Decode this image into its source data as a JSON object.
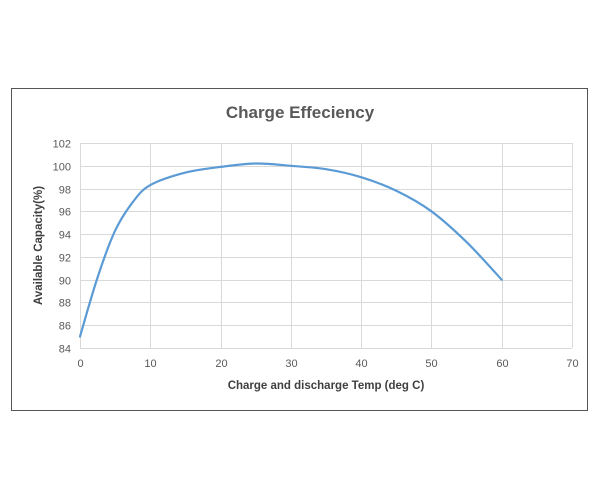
{
  "chart_data": {
    "type": "line",
    "title": "Charge Effeciency",
    "xlabel": "Charge and discharge Temp (deg C)",
    "ylabel": "Available Capacity(%)",
    "x": [
      0,
      2.5,
      5,
      7.5,
      10,
      15,
      20,
      25,
      30,
      35,
      40,
      45,
      50,
      55,
      60
    ],
    "series": [
      {
        "values": [
          85,
          90.2,
          94.3,
          96.8,
          98.3,
          99.4,
          99.9,
          100.2,
          100,
          99.7,
          99,
          97.8,
          96,
          93.3,
          90
        ],
        "color": "#5b9bd5"
      }
    ],
    "xlim": [
      0,
      70
    ],
    "ylim": [
      84,
      102
    ],
    "xticks": [
      0,
      10,
      20,
      30,
      40,
      50,
      60,
      70
    ],
    "yticks": [
      84,
      86,
      88,
      90,
      92,
      94,
      96,
      98,
      100,
      102
    ],
    "grid": true,
    "colors": {
      "grid": "#d9d9d9",
      "border": "#555555"
    }
  }
}
